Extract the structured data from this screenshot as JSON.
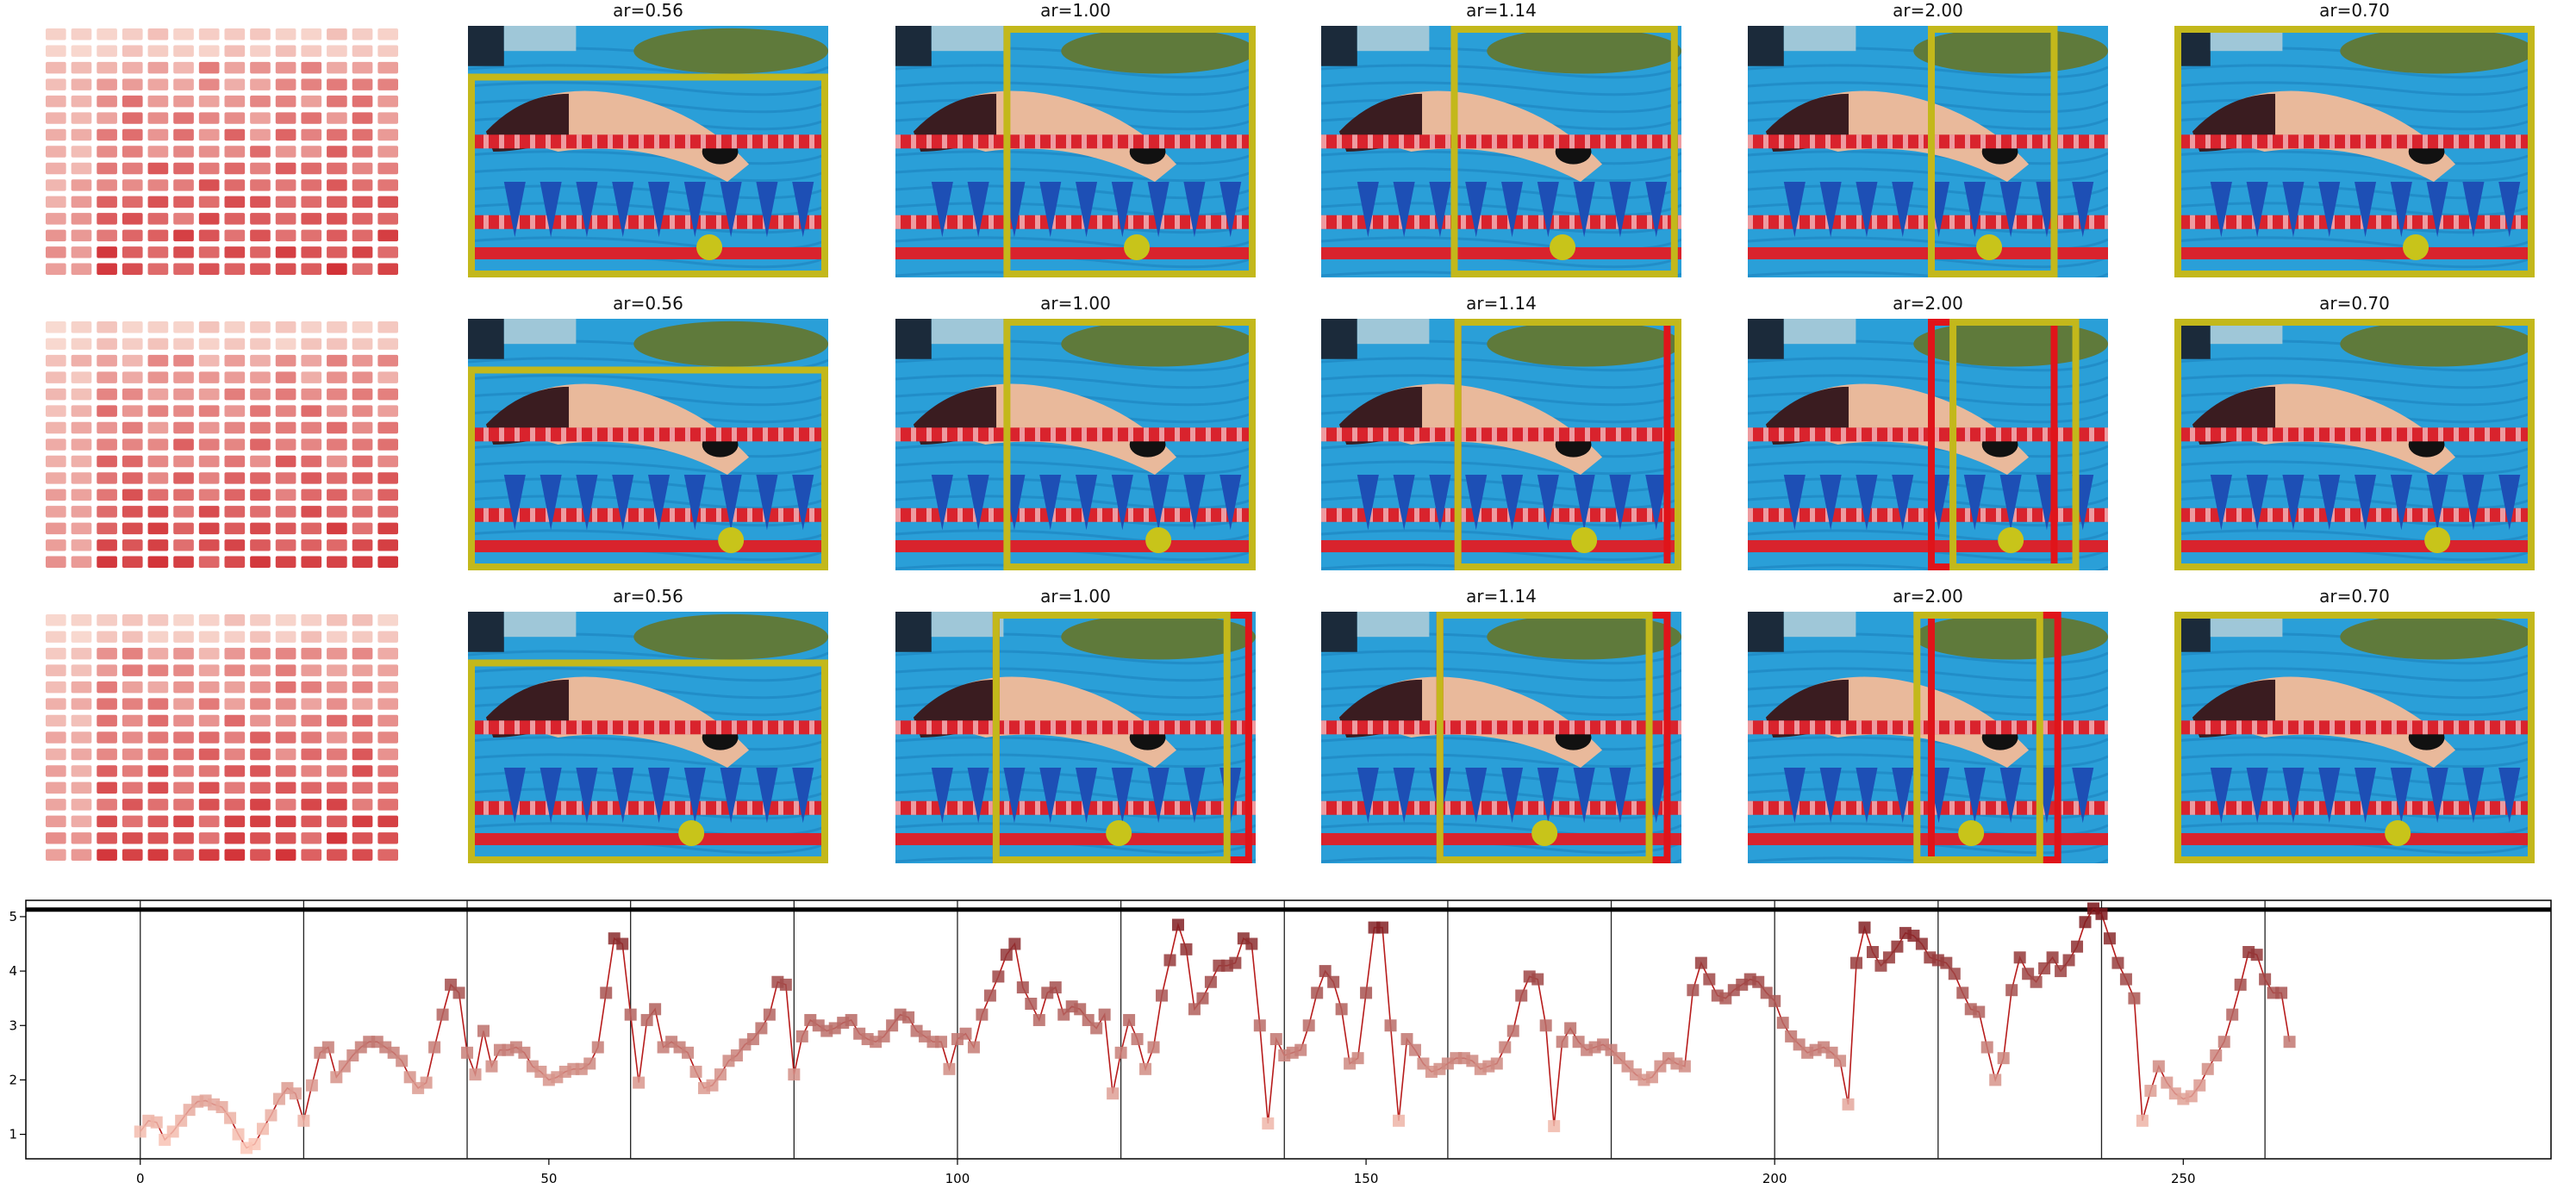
{
  "figure": {
    "ar_labels": [
      "ar=0.56",
      "ar=1.00",
      "ar=1.14",
      "ar=2.00",
      "ar=0.70"
    ],
    "colors": {
      "box_yellow": "#c3b81b",
      "box_red": "#e0141a",
      "dot": "#c8c41a",
      "water": "#2a9fd8",
      "water_dark": "#1677b6",
      "lane_red": "#d9232d",
      "flag_blue": "#1d4fb5",
      "skin": "#e9b99b",
      "suit_dark": "#3a1c20",
      "suit_green": "#5f7a3b"
    },
    "rows": [
      {
        "heatmap_icon": "attention-heatmap-icon"
      },
      {
        "heatmap_icon": "attention-heatmap-icon"
      },
      {
        "heatmap_icon": "attention-heatmap-icon"
      }
    ]
  },
  "chart_data": {
    "type": "line",
    "title": "",
    "xlabel": "",
    "ylabel": "",
    "xlim": [
      -14,
      295
    ],
    "ylim": [
      0.55,
      5.3
    ],
    "xticks": [
      0,
      50,
      100,
      150,
      200,
      250
    ],
    "yticks": [
      1,
      2,
      3,
      4,
      5
    ],
    "vlines": [
      0,
      20,
      40,
      60,
      80,
      100,
      120,
      140,
      160,
      180,
      200,
      220,
      240,
      260
    ],
    "hline": 5.13,
    "grid": false,
    "series": [
      {
        "marker": "square",
        "x_start": 0,
        "x_step": 1,
        "values": [
          1.05,
          1.25,
          1.22,
          0.9,
          1.05,
          1.25,
          1.45,
          1.6,
          1.62,
          1.55,
          1.5,
          1.3,
          1.0,
          0.75,
          0.82,
          1.1,
          1.35,
          1.65,
          1.85,
          1.75,
          1.25,
          1.9,
          2.5,
          2.6,
          2.05,
          2.25,
          2.45,
          2.6,
          2.7,
          2.7,
          2.6,
          2.5,
          2.35,
          2.05,
          1.85,
          1.95,
          2.6,
          3.2,
          3.75,
          3.6,
          2.5,
          2.1,
          2.9,
          2.25,
          2.55,
          2.55,
          2.6,
          2.5,
          2.25,
          2.15,
          2.0,
          2.05,
          2.15,
          2.2,
          2.2,
          2.3,
          2.6,
          3.6,
          4.6,
          4.5,
          3.2,
          1.95,
          3.1,
          3.3,
          2.6,
          2.7,
          2.6,
          2.5,
          2.15,
          1.85,
          1.9,
          2.1,
          2.35,
          2.45,
          2.65,
          2.75,
          2.95,
          3.2,
          3.8,
          3.75,
          2.1,
          2.8,
          3.1,
          3.0,
          2.9,
          2.95,
          3.05,
          3.1,
          2.85,
          2.75,
          2.7,
          2.8,
          3.0,
          3.2,
          3.15,
          2.9,
          2.8,
          2.7,
          2.7,
          2.2,
          2.75,
          2.85,
          2.6,
          3.2,
          3.55,
          3.9,
          4.3,
          4.5,
          3.7,
          3.4,
          3.1,
          3.6,
          3.7,
          3.2,
          3.35,
          3.3,
          3.1,
          2.95,
          3.2,
          1.75,
          2.5,
          3.1,
          2.75,
          2.2,
          2.6,
          3.55,
          4.2,
          4.85,
          4.4,
          3.3,
          3.5,
          3.8,
          4.1,
          4.1,
          4.15,
          4.6,
          4.5,
          3.0,
          1.2,
          2.75,
          2.45,
          2.5,
          2.55,
          3.0,
          3.6,
          4.0,
          3.8,
          3.3,
          2.3,
          2.4,
          3.6,
          4.8,
          4.8,
          3.0,
          1.25,
          2.75,
          2.55,
          2.3,
          2.15,
          2.2,
          2.3,
          2.4,
          2.4,
          2.35,
          2.2,
          2.25,
          2.3,
          2.6,
          2.9,
          3.55,
          3.9,
          3.85,
          3.0,
          1.15,
          2.7,
          2.95,
          2.7,
          2.55,
          2.6,
          2.65,
          2.55,
          2.4,
          2.25,
          2.1,
          2.0,
          2.05,
          2.25,
          2.4,
          2.3,
          2.25,
          3.65,
          4.15,
          3.85,
          3.55,
          3.5,
          3.65,
          3.75,
          3.85,
          3.8,
          3.6,
          3.45,
          3.05,
          2.8,
          2.65,
          2.5,
          2.55,
          2.6,
          2.5,
          2.35,
          1.55,
          4.15,
          4.8,
          4.35,
          4.1,
          4.25,
          4.45,
          4.7,
          4.65,
          4.5,
          4.25,
          4.2,
          4.15,
          3.95,
          3.6,
          3.3,
          3.25,
          2.6,
          2.0,
          2.4,
          3.65,
          4.25,
          3.95,
          3.8,
          4.05,
          4.25,
          4.0,
          4.2,
          4.45,
          4.9,
          5.15,
          5.05,
          4.6,
          4.15,
          3.85,
          3.5,
          1.25,
          1.8,
          2.25,
          1.95,
          1.75,
          1.65,
          1.7,
          1.9,
          2.2,
          2.45,
          2.7,
          3.2,
          3.75,
          4.35,
          4.3,
          3.85,
          3.6,
          3.6,
          2.7
        ]
      }
    ]
  }
}
